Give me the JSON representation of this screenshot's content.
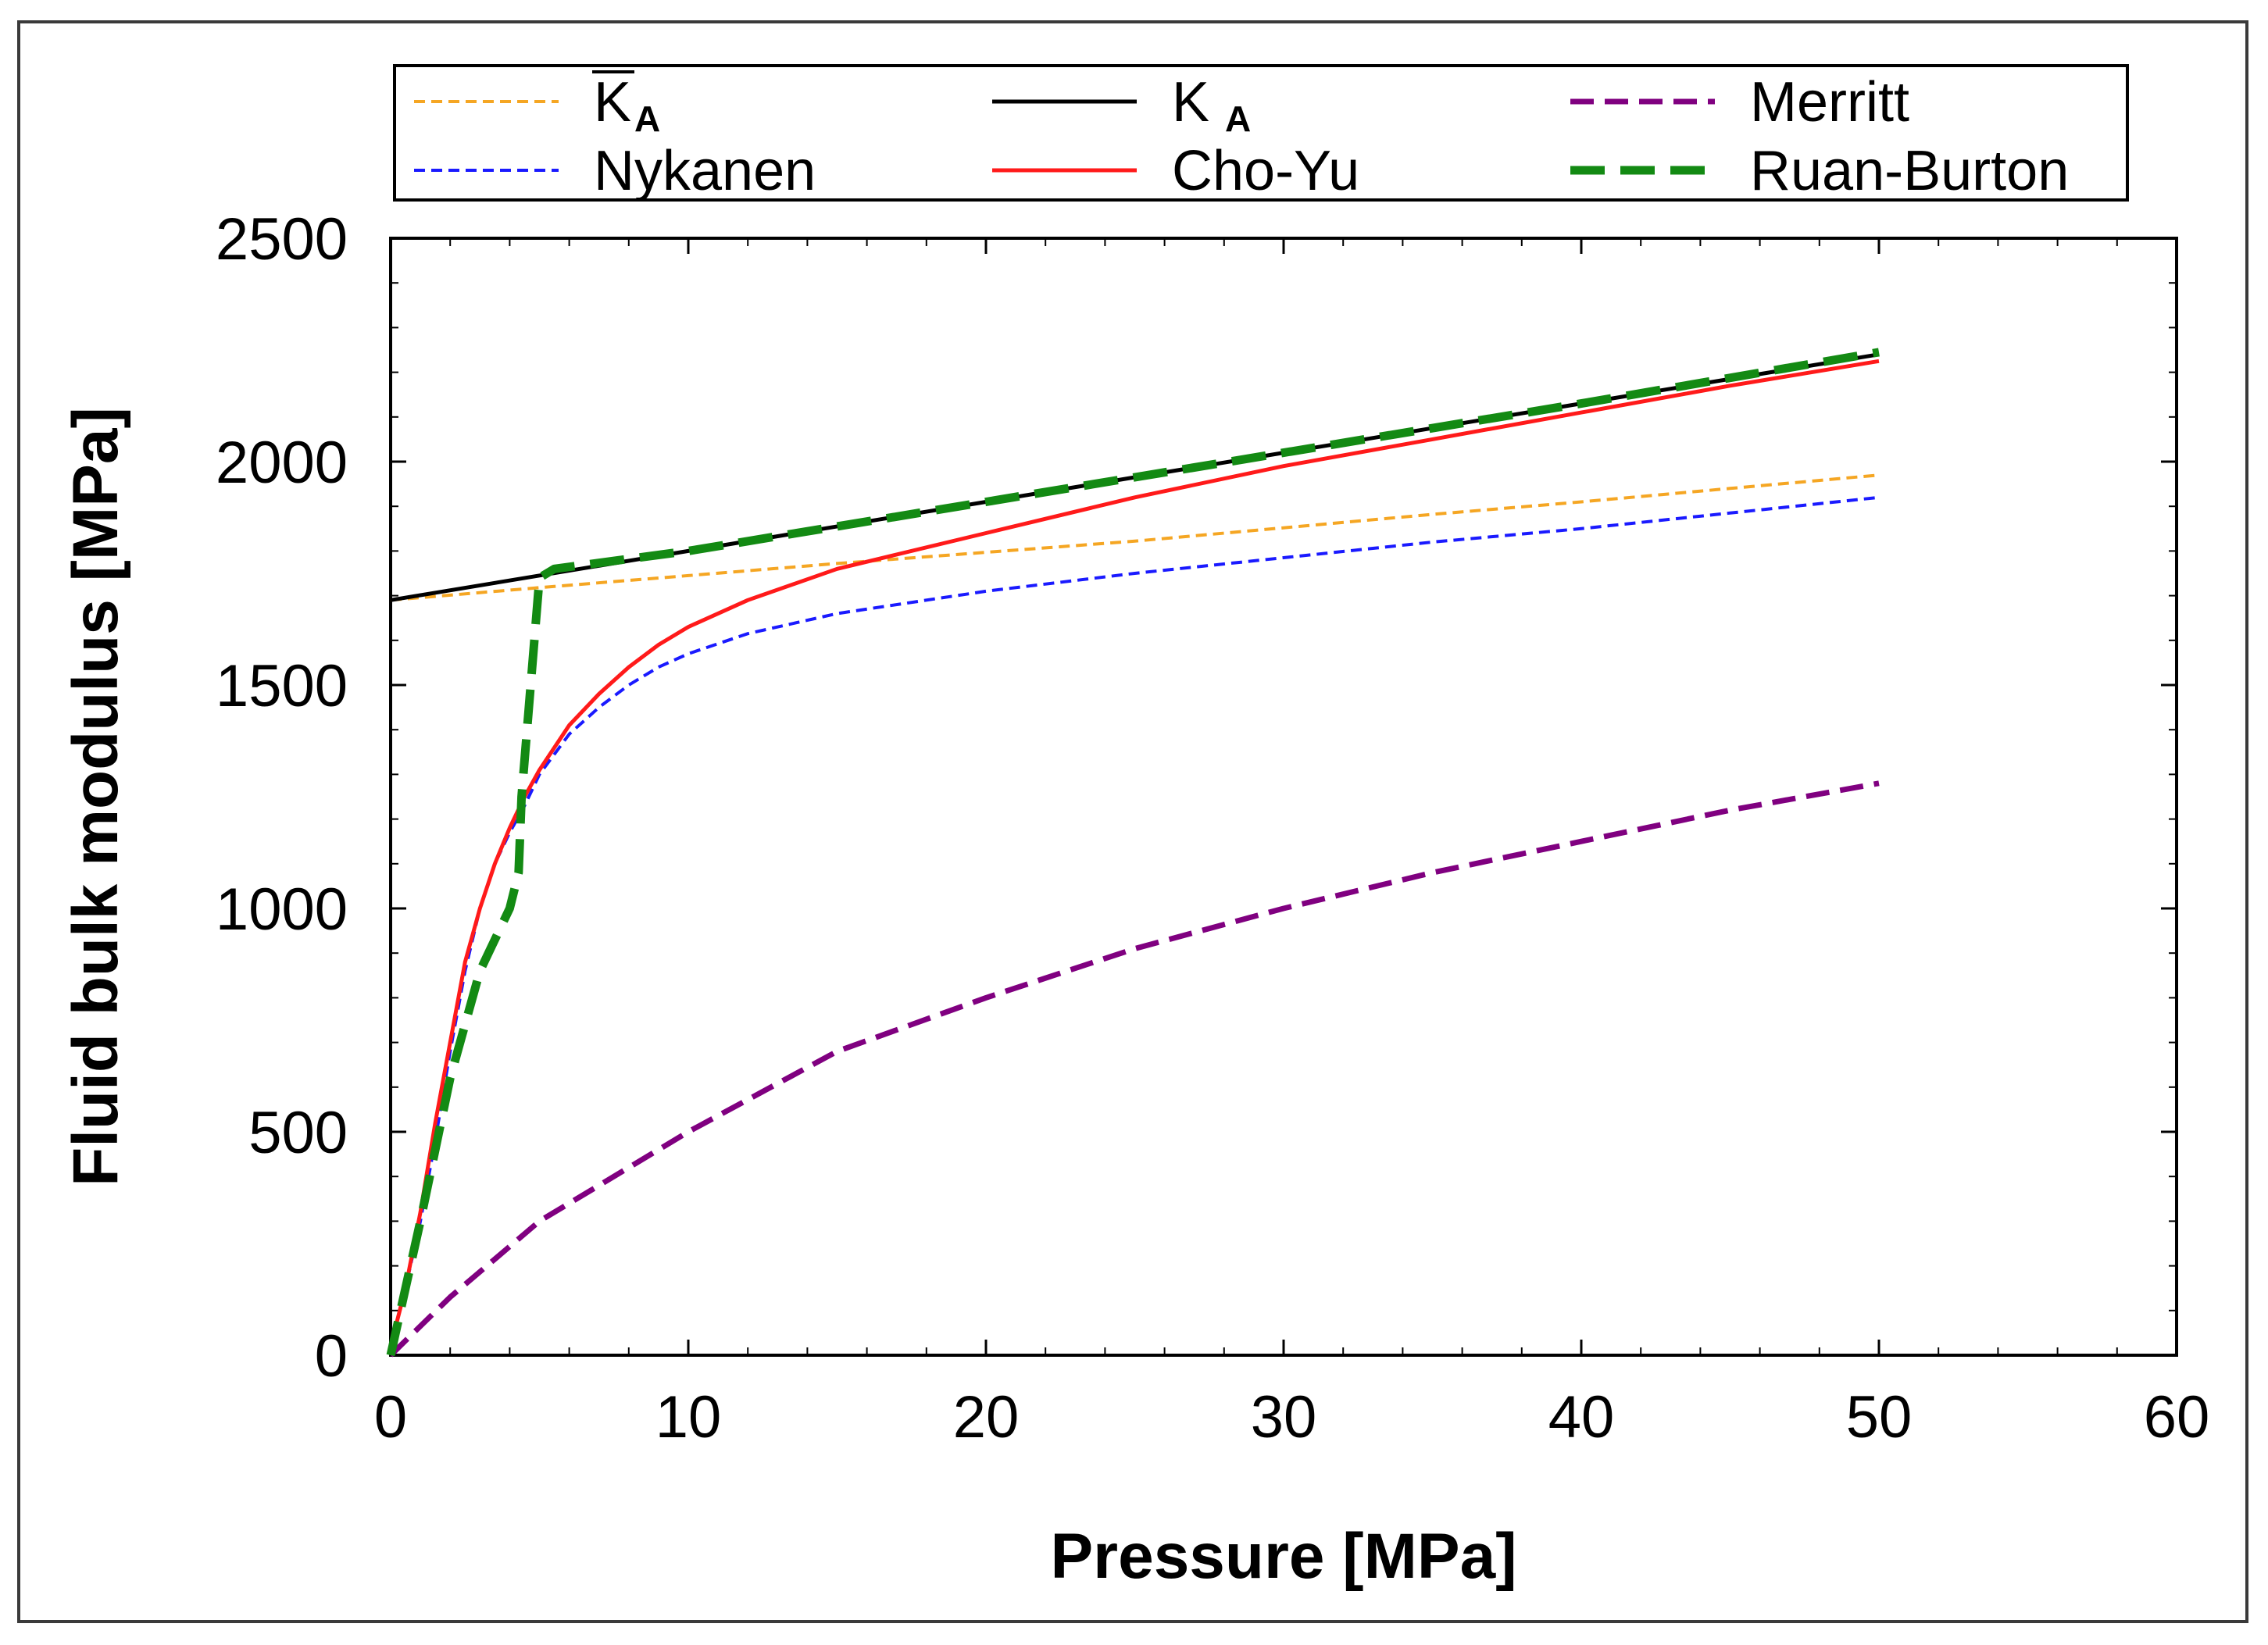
{
  "chart_data": {
    "type": "line",
    "title": "",
    "xlabel": "Pressure [MPa]",
    "ylabel": "Fluid bulk modulus [MPa]",
    "xlim": [
      0,
      60
    ],
    "ylim": [
      0,
      2500
    ],
    "xticks": [
      0,
      10,
      20,
      30,
      40,
      50,
      60
    ],
    "yticks": [
      0,
      500,
      1000,
      1500,
      2000,
      2500
    ],
    "grid": false,
    "legend_position": "top",
    "series": [
      {
        "id": "ka-bar",
        "name": "K̄A",
        "legend_main": "K",
        "legend_sub": "A",
        "overline": true,
        "color": "#f5a623",
        "style": "dotted",
        "x": [
          0,
          5,
          10,
          15,
          20,
          25,
          30,
          35,
          40,
          45,
          50
        ],
        "y": [
          1690,
          1718,
          1745,
          1772,
          1797,
          1822,
          1852,
          1882,
          1910,
          1940,
          1970
        ]
      },
      {
        "id": "nykanen",
        "name": "Nykanen",
        "color": "#1a1aff",
        "style": "dotted",
        "x": [
          0,
          0.5,
          1,
          1.5,
          2,
          2.5,
          3,
          3.5,
          4,
          4.5,
          5,
          6,
          7,
          8,
          9,
          10,
          12,
          15,
          20,
          25,
          30,
          35,
          40,
          45,
          50
        ],
        "y": [
          20,
          150,
          300,
          480,
          680,
          860,
          1000,
          1100,
          1170,
          1230,
          1300,
          1390,
          1450,
          1500,
          1540,
          1570,
          1615,
          1660,
          1710,
          1750,
          1785,
          1820,
          1850,
          1885,
          1920
        ]
      },
      {
        "id": "ka",
        "name": "K A",
        "legend_main": "K",
        "legend_sub": "A",
        "overline": false,
        "color": "#000000",
        "style": "solid",
        "x": [
          0,
          10,
          20,
          30,
          40,
          50
        ],
        "y": [
          1690,
          1800,
          1910,
          2020,
          2130,
          2240
        ]
      },
      {
        "id": "cho-yu",
        "name": "Cho-Yu",
        "color": "#ff1a1a",
        "style": "solid",
        "x": [
          0,
          0.5,
          1,
          1.5,
          2,
          2.5,
          3,
          3.5,
          4,
          4.5,
          5,
          6,
          7,
          8,
          9,
          10,
          12,
          15,
          20,
          25,
          30,
          35,
          40,
          45,
          50
        ],
        "y": [
          20,
          150,
          320,
          520,
          700,
          880,
          1000,
          1100,
          1180,
          1250,
          1310,
          1410,
          1480,
          1540,
          1590,
          1630,
          1690,
          1760,
          1840,
          1920,
          1990,
          2050,
          2110,
          2170,
          2225
        ]
      },
      {
        "id": "merritt",
        "name": "Merritt",
        "color": "#800080",
        "style": "dashed",
        "x": [
          0,
          2,
          5,
          10,
          15,
          20,
          25,
          30,
          35,
          40,
          45,
          50
        ],
        "y": [
          0,
          130,
          300,
          500,
          680,
          800,
          910,
          1000,
          1080,
          1150,
          1220,
          1280
        ]
      },
      {
        "id": "ruan-burton",
        "name": "Ruan-Burton",
        "color": "#138a13",
        "style": "longdash",
        "x": [
          0,
          1,
          2,
          3,
          4,
          4.3,
          4.4,
          5,
          5.5,
          10,
          20,
          30,
          40,
          50
        ],
        "y": [
          0,
          300,
          620,
          860,
          1000,
          1080,
          1250,
          1740,
          1760,
          1800,
          1910,
          2020,
          2130,
          2245
        ]
      }
    ]
  }
}
